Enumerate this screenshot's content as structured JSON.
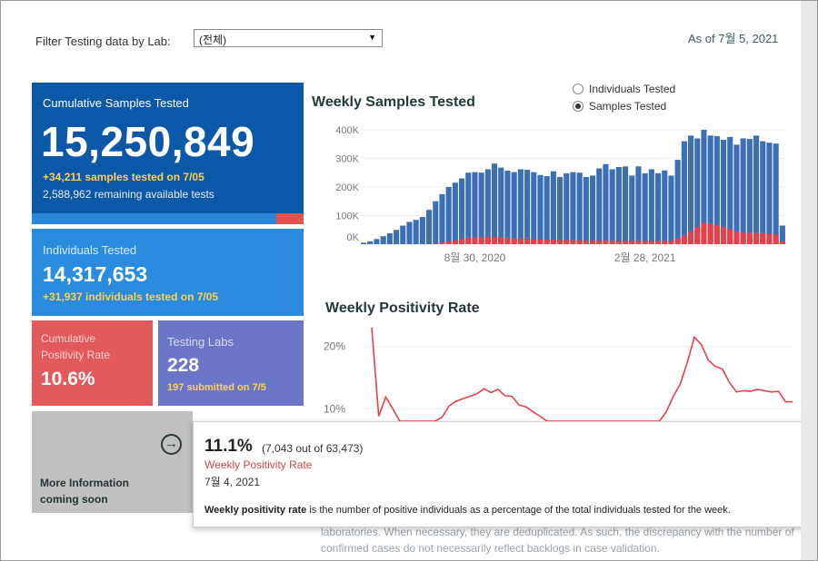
{
  "filter": {
    "label": "Filter Testing data by Lab:",
    "selected": "(전체)"
  },
  "as_of": "As of 7월 5, 2021",
  "cards": {
    "cumulative": {
      "title": "Cumulative Samples Tested",
      "value": "15,250,849",
      "sub1": "+34,211 samples tested on 7/05",
      "sub2": "2,588,962 remaining available tests"
    },
    "individuals": {
      "title": "Individuals Tested",
      "value": "14,317,653",
      "sub1": "+31,937  individuals  tested on 7/05"
    },
    "positivity": {
      "title": "Cumulative Positivity Rate",
      "value": "10.6%"
    },
    "labs": {
      "title": "Testing Labs",
      "value": "228",
      "sub1": "197 submitted on 7/5"
    },
    "more_info": {
      "title": "More Information coming soon"
    }
  },
  "weekly_samples": {
    "title": "Weekly Samples Tested",
    "radio_options": [
      "Individuals Tested",
      "Samples Tested"
    ],
    "radio_selected": "Samples Tested"
  },
  "weekly_positivity": {
    "title": "Weekly Positivity Rate"
  },
  "tooltip": {
    "pct": "11.1%",
    "detail": "(7,043 out of  63,473)",
    "metric": "Weekly Positivity Rate",
    "date": "7월 4, 2021",
    "desc_bold": "Weekly positivity rate",
    "desc_rest": " is the number of positive individuals as a percentage of the total individuals tested for the week."
  },
  "background_text": {
    "line1": "laboratories. When necessary, they are deduplicated. As such, the discrepancy with the number of",
    "line2": "confirmed cases do not necessarily reflect backlogs in case validation."
  },
  "chart_data": [
    {
      "type": "bar",
      "title": "Weekly Samples Tested",
      "ylim": [
        0,
        400000
      ],
      "yticks": [
        0,
        100000,
        200000,
        300000,
        400000
      ],
      "ytick_labels": [
        "0K",
        "100K",
        "200K",
        "300K",
        "400K"
      ],
      "xtick_labels": [
        "8월 30, 2020",
        "2월 28, 2021"
      ],
      "xtick_index": [
        17,
        43
      ],
      "legend": [
        "Individuals Tested",
        "Samples Tested"
      ],
      "colors": {
        "total": "#3b6fb6",
        "positive": "#e3424a"
      },
      "series": [
        {
          "name": "Samples Tested",
          "values": [
            5000,
            10000,
            18000,
            28000,
            38000,
            50000,
            65000,
            78000,
            85000,
            95000,
            120000,
            150000,
            175000,
            200000,
            215000,
            230000,
            250000,
            252000,
            250000,
            262000,
            282000,
            268000,
            257000,
            252000,
            262000,
            260000,
            252000,
            242000,
            238000,
            255000,
            235000,
            248000,
            252000,
            250000,
            235000,
            240000,
            265000,
            280000,
            262000,
            270000,
            272000,
            240000,
            272000,
            248000,
            262000,
            248000,
            258000,
            240000,
            295000,
            360000,
            380000,
            370000,
            400000,
            380000,
            378000,
            365000,
            375000,
            348000,
            370000,
            368000,
            380000,
            360000,
            355000,
            352000,
            65000
          ]
        },
        {
          "name": "Positive",
          "values": [
            0,
            0,
            0,
            0,
            0,
            0,
            0,
            0,
            0,
            0,
            0,
            2000,
            6000,
            10000,
            14000,
            18000,
            22000,
            24000,
            24000,
            26000,
            25000,
            24000,
            22000,
            20000,
            20000,
            19000,
            18000,
            17000,
            16000,
            16000,
            15000,
            15000,
            14000,
            14000,
            13000,
            13000,
            13000,
            13000,
            12000,
            12000,
            12000,
            12000,
            12000,
            12000,
            12000,
            12000,
            12000,
            12000,
            20000,
            30000,
            45000,
            60000,
            75000,
            72000,
            68000,
            60000,
            52000,
            44000,
            40000,
            40000,
            40000,
            38000,
            36000,
            34000,
            10000
          ]
        }
      ]
    },
    {
      "type": "line",
      "title": "Weekly Positivity Rate",
      "ylim": [
        8,
        22
      ],
      "yticks": [
        10,
        20
      ],
      "ytick_labels": [
        "10%",
        "20%"
      ],
      "colors": {
        "line": "#e3424a"
      },
      "series": [
        {
          "name": "Weekly Positivity Rate",
          "values": [
            23,
            8.8,
            11.9,
            10.0,
            8,
            8,
            8,
            8,
            8,
            8,
            8.6,
            10.4,
            11.2,
            11.6,
            12.0,
            12.4,
            13.2,
            12.6,
            13.1,
            12.1,
            12.0,
            10.6,
            10.3,
            9.5,
            8.8,
            8,
            8,
            8,
            8,
            8,
            8,
            8,
            8,
            8,
            8,
            8,
            8,
            8,
            8,
            8,
            8,
            8,
            9.5,
            12,
            14,
            17.5,
            21.5,
            20.3,
            17.8,
            16.8,
            16.4,
            14.2,
            12.7,
            12.9,
            12.8,
            13.1,
            12.9,
            12.7,
            12.8,
            11.1,
            11.1
          ]
        }
      ]
    }
  ]
}
